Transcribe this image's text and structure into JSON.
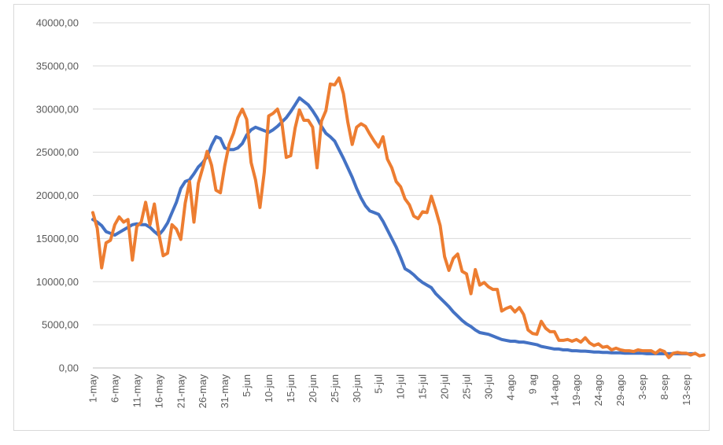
{
  "chart_data": {
    "type": "line",
    "title": "",
    "xlabel": "",
    "ylabel": "",
    "ylim": [
      0,
      40000
    ],
    "yticks": [
      "0,00",
      "5000,00",
      "10000,00",
      "15000,00",
      "20000,00",
      "25000,00",
      "30000,00",
      "35000,00",
      "40000,00"
    ],
    "xticks": [
      "1-may",
      "6-may",
      "11-may",
      "16-may",
      "21-may",
      "26-may",
      "31-may",
      "5-jun",
      "10-jun",
      "15-jun",
      "20-jun",
      "25-jun",
      "30-jun",
      "5-jul",
      "10-jul",
      "15-jul",
      "20-jul",
      "25-jul",
      "30-jul",
      "4-ago",
      "9 ag",
      "14-ago",
      "19-ago",
      "24-ago",
      "29-ago",
      "3-sep",
      "8-sep",
      "13-sep"
    ],
    "x_days": 137,
    "gridlines": true,
    "legend": "none",
    "series": [
      {
        "color": "#4472c4",
        "values": [
          17200,
          16900,
          16500,
          15800,
          15600,
          15400,
          15700,
          16000,
          16300,
          16600,
          16700,
          16600,
          16600,
          16300,
          15800,
          15400,
          16000,
          16800,
          18000,
          19200,
          20800,
          21600,
          21800,
          22500,
          23300,
          23800,
          24500,
          25800,
          26800,
          26600,
          25500,
          25300,
          25300,
          25500,
          26000,
          27000,
          27600,
          27900,
          27700,
          27500,
          27300,
          27600,
          28000,
          28500,
          29000,
          29700,
          30500,
          31300,
          30900,
          30500,
          29800,
          29000,
          28000,
          27200,
          26800,
          26300,
          25300,
          24300,
          23200,
          22100,
          20800,
          19700,
          18800,
          18200,
          18000,
          17800,
          17000,
          16000,
          15000,
          14000,
          12800,
          11500,
          11200,
          10800,
          10300,
          9900,
          9600,
          9300,
          8600,
          8100,
          7600,
          7100,
          6500,
          6000,
          5500,
          5100,
          4800,
          4400,
          4100,
          4000,
          3900,
          3700,
          3500,
          3300,
          3200,
          3100,
          3100,
          3000,
          3000,
          2900,
          2800,
          2700,
          2500,
          2400,
          2300,
          2200,
          2200,
          2100,
          2100,
          2000,
          2000,
          1950,
          1950,
          1900,
          1850,
          1850,
          1800,
          1800,
          1750,
          1750,
          1750,
          1700,
          1700,
          1700,
          1700,
          1700,
          1650,
          1650,
          1650,
          1650,
          1650,
          1650,
          1650,
          1650,
          1650,
          1650,
          1650,
          1650
        ]
      },
      {
        "color": "#ed7d31",
        "values": [
          18000,
          16200,
          11600,
          14500,
          14800,
          16600,
          17500,
          16900,
          17200,
          12500,
          16400,
          16900,
          19200,
          16600,
          19000,
          15600,
          13000,
          13300,
          16600,
          16100,
          14900,
          19100,
          21600,
          16900,
          21400,
          23200,
          25100,
          23500,
          20600,
          20300,
          23400,
          25900,
          27200,
          29000,
          30000,
          28800,
          23800,
          21800,
          18600,
          22700,
          29200,
          29500,
          30000,
          28400,
          24400,
          24600,
          27800,
          29900,
          28700,
          28700,
          27900,
          23200,
          28600,
          29800,
          32900,
          32800,
          33600,
          31800,
          28500,
          25900,
          27900,
          28300,
          28000,
          27100,
          26300,
          25600,
          26800,
          24200,
          23200,
          21600,
          21000,
          19600,
          18900,
          17600,
          17300,
          18100,
          18000,
          19900,
          18300,
          16500,
          12900,
          11300,
          12700,
          13200,
          11200,
          10900,
          8600,
          11400,
          9600,
          9900,
          9400,
          9100,
          9100,
          6600,
          6900,
          7100,
          6500,
          7000,
          6200,
          4400,
          4000,
          3900,
          5400,
          4600,
          4200,
          4200,
          3200,
          3200,
          3300,
          3100,
          3300,
          3000,
          3500,
          2900,
          2600,
          2800,
          2400,
          2500,
          2100,
          2300,
          2100,
          2000,
          2000,
          1900,
          2100,
          2000,
          2000,
          2000,
          1700,
          2100,
          1900,
          1200,
          1700,
          1800,
          1700,
          1700,
          1500,
          1700,
          1400,
          1500
        ]
      }
    ]
  }
}
